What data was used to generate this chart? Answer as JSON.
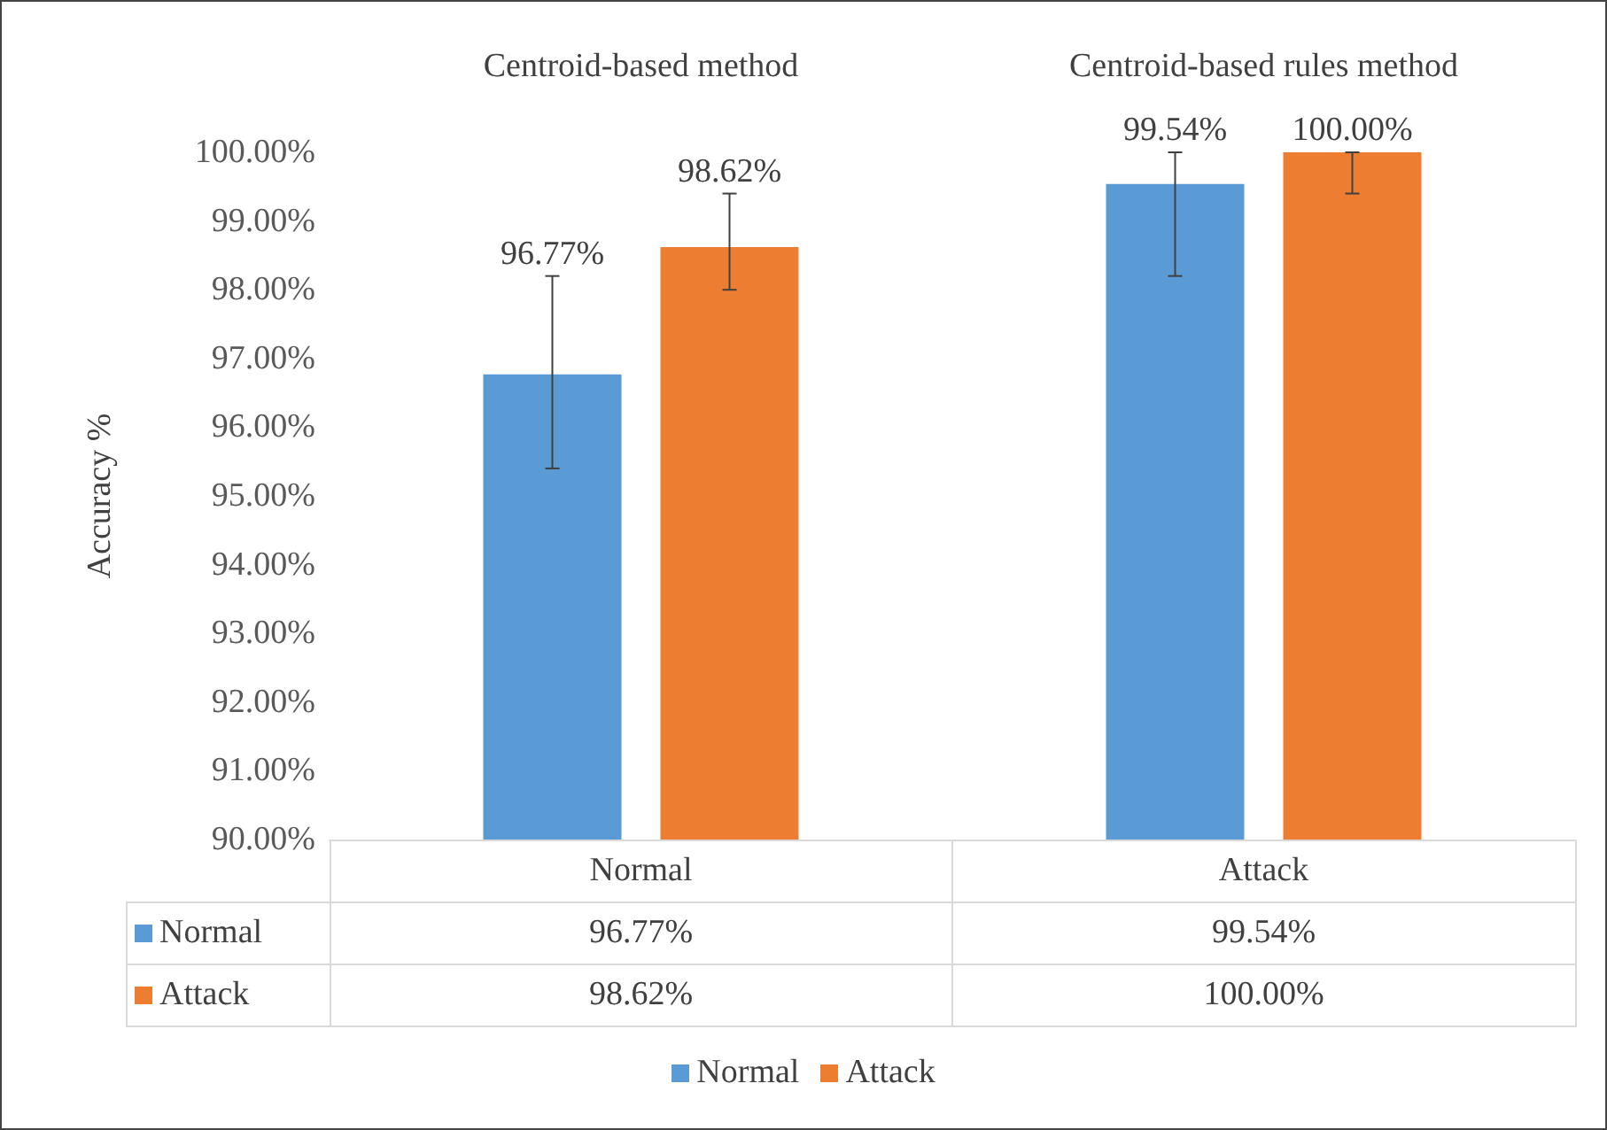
{
  "chart_data": {
    "type": "bar",
    "ylabel": "Accuracy %",
    "categories": [
      "Normal",
      "Attack"
    ],
    "series": [
      {
        "name": "Normal",
        "color": "#5b9bd5",
        "values": [
          96.77,
          99.54
        ],
        "errors": [
          [
            95.4,
            98.2
          ],
          [
            98.2,
            100
          ]
        ],
        "value_labels": [
          "96.77%",
          "99.54%"
        ]
      },
      {
        "name": "Attack",
        "color": "#ed7d31",
        "values": [
          98.62,
          100.0
        ],
        "errors": [
          [
            98.0,
            99.4
          ],
          [
            99.4,
            100
          ]
        ],
        "value_labels": [
          "98.62%",
          "100.00%"
        ]
      }
    ],
    "annotations": [
      "Centroid-based method",
      "Centroid-based rules method"
    ],
    "ylim": [
      90,
      100
    ],
    "yticks": [
      {
        "value": 90,
        "label": "90.00%"
      },
      {
        "value": 91,
        "label": "91.00%"
      },
      {
        "value": 92,
        "label": "92.00%"
      },
      {
        "value": 93,
        "label": "93.00%"
      },
      {
        "value": 94,
        "label": "94.00%"
      },
      {
        "value": 95,
        "label": "95.00%"
      },
      {
        "value": 96,
        "label": "96.00%"
      },
      {
        "value": 97,
        "label": "97.00%"
      },
      {
        "value": 98,
        "label": "98.00%"
      },
      {
        "value": 99,
        "label": "99.00%"
      },
      {
        "value": 100,
        "label": "100.00%"
      }
    ],
    "grid": false,
    "legend": "bottom"
  }
}
